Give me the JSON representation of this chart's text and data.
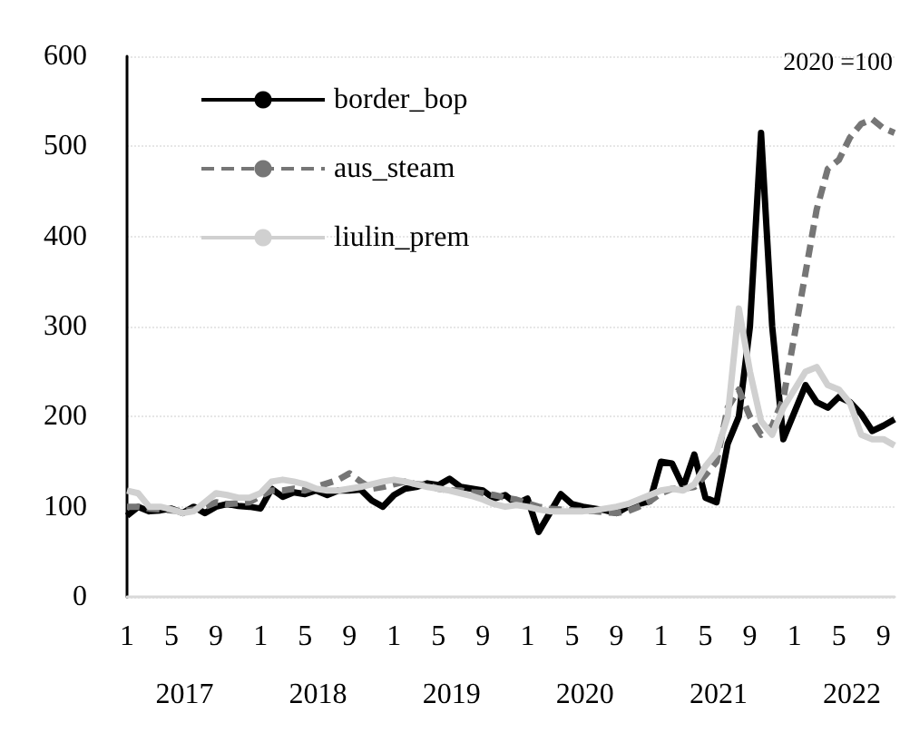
{
  "chart_data": {
    "type": "line",
    "categories": [
      "1",
      null,
      null,
      null,
      "5",
      null,
      null,
      null,
      "9",
      null,
      null,
      null,
      "1",
      null,
      null,
      null,
      "5",
      null,
      null,
      null,
      "9",
      null,
      null,
      null,
      "1",
      null,
      null,
      null,
      "5",
      null,
      null,
      null,
      "9",
      null,
      null,
      null,
      "1",
      null,
      null,
      null,
      "5",
      null,
      null,
      null,
      "9",
      null,
      null,
      null,
      "1",
      null,
      null,
      null,
      "5",
      null,
      null,
      null,
      "9",
      null,
      null,
      null,
      "1",
      null,
      null,
      null,
      "5",
      null,
      null,
      null,
      "9",
      null
    ],
    "series": [
      {
        "name": "border_bop",
        "color": "#000000",
        "line_style": "solid",
        "values": [
          90,
          100,
          95,
          96,
          98,
          93,
          100,
          93,
          100,
          103,
          101,
          100,
          98,
          120,
          111,
          116,
          114,
          118,
          113,
          118,
          118,
          119,
          107,
          100,
          113,
          120,
          122,
          126,
          124,
          131,
          122,
          120,
          118,
          109,
          113,
          103,
          109,
          72,
          93,
          114,
          103,
          100,
          98,
          96,
          93,
          100,
          103,
          106,
          150,
          148,
          122,
          158,
          110,
          105,
          170,
          200,
          300,
          515,
          300,
          175,
          205,
          235,
          216,
          210,
          222,
          216,
          203,
          184,
          190,
          197
        ]
      },
      {
        "name": "aus_steam",
        "color": "#767676",
        "line_style": "dashed",
        "values": [
          100,
          100,
          98,
          97,
          96,
          95,
          97,
          100,
          105,
          103,
          104,
          105,
          112,
          118,
          118,
          120,
          118,
          122,
          126,
          130,
          137,
          128,
          120,
          122,
          125,
          128,
          125,
          124,
          120,
          118,
          118,
          116,
          115,
          113,
          110,
          108,
          104,
          100,
          98,
          97,
          96,
          96,
          95,
          94,
          93,
          95,
          100,
          106,
          115,
          120,
          120,
          122,
          135,
          150,
          210,
          230,
          200,
          180,
          190,
          220,
          290,
          360,
          430,
          475,
          485,
          510,
          525,
          530,
          520,
          515
        ]
      },
      {
        "name": "liulin_prem",
        "color": "#d0d0d0",
        "line_style": "solid",
        "values": [
          118,
          115,
          100,
          100,
          97,
          93,
          95,
          105,
          115,
          113,
          110,
          110,
          115,
          128,
          130,
          128,
          125,
          120,
          118,
          118,
          120,
          122,
          125,
          128,
          130,
          128,
          125,
          122,
          120,
          118,
          115,
          112,
          108,
          103,
          100,
          102,
          100,
          97,
          95,
          95,
          95,
          95,
          96,
          98,
          100,
          103,
          108,
          113,
          118,
          120,
          118,
          125,
          145,
          160,
          200,
          320,
          250,
          195,
          180,
          210,
          230,
          250,
          255,
          235,
          230,
          215,
          180,
          175,
          175,
          168
        ]
      }
    ],
    "ylabel": "2020 =100",
    "annotations": [
      "2017",
      "2018",
      "2019",
      "2020",
      "2021",
      "2022"
    ],
    "ylim": [
      0,
      600
    ],
    "yticks": [
      0,
      100,
      200,
      300,
      400,
      500,
      600
    ],
    "grid": "y",
    "legend": "top left"
  }
}
